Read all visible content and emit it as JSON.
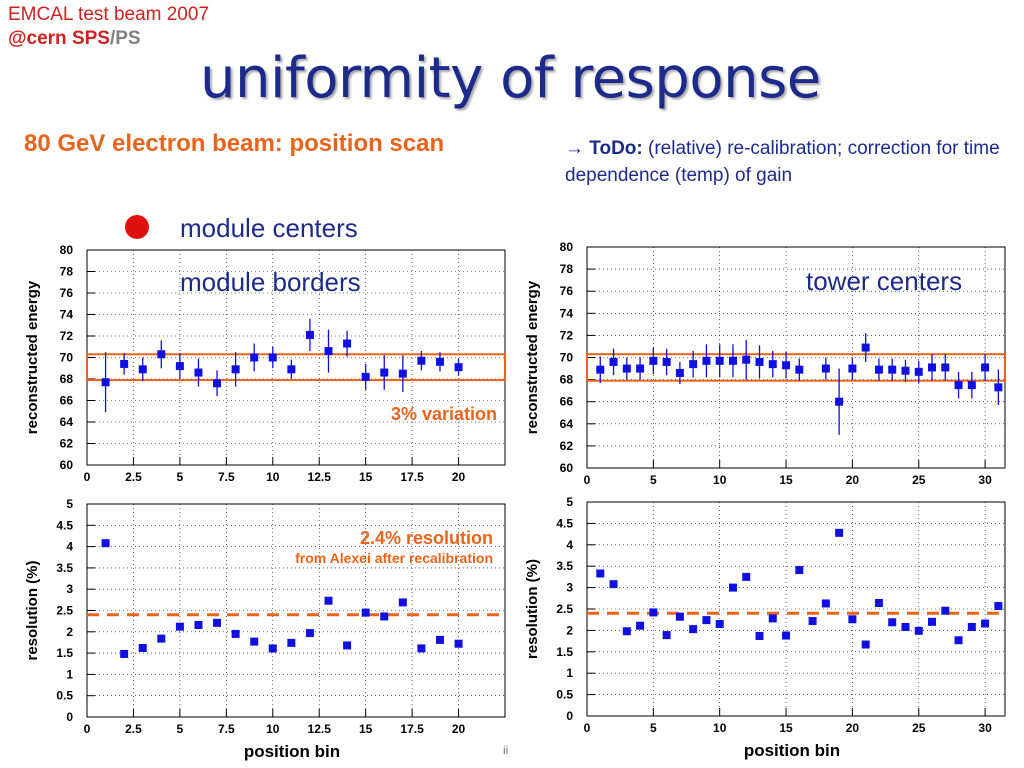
{
  "header": {
    "line1": "EMCAL test beam 2007",
    "line2_red": "@cern SPS",
    "line2_sep": "/",
    "line2_grey": "PS"
  },
  "title": "uniformity of response",
  "subtitle": "80 GeV electron beam: position scan",
  "todo": {
    "arrow": "→",
    "label": "ToDo:",
    "text": " (relative) re-calibration; correction for time dependence (temp) of gain"
  },
  "legend": {
    "module_centers": "module centers",
    "module_borders": "module borders",
    "tower_centers": "tower centers"
  },
  "footer_mark": "ii",
  "colors": {
    "marker": "#1010e0",
    "orange": "#e8641c",
    "red_dot": "#d01010",
    "title": "#1c2a8c"
  },
  "chart_data": [
    {
      "id": "energy_module",
      "type": "scatter",
      "ylabel": "reconstructed energy",
      "xlim": [
        0,
        22.5
      ],
      "ylim": [
        60,
        80
      ],
      "xticks": [
        "0",
        "2.5",
        "5",
        "7.5",
        "10",
        "12.5",
        "15",
        "17.5",
        "20"
      ],
      "xtick_values": [
        0,
        2.5,
        5,
        7.5,
        10,
        12.5,
        15,
        17.5,
        20
      ],
      "yticks": [
        60,
        62,
        64,
        66,
        68,
        70,
        72,
        74,
        76,
        78,
        80
      ],
      "x": [
        1,
        2,
        3,
        4,
        5,
        6,
        7,
        8,
        9,
        10,
        11,
        12,
        13,
        14,
        15,
        16,
        17,
        18,
        19,
        20
      ],
      "y": [
        67.7,
        69.4,
        68.9,
        70.3,
        69.2,
        68.6,
        67.6,
        68.9,
        70.0,
        70.0,
        68.9,
        72.1,
        70.6,
        71.3,
        68.2,
        68.6,
        68.5,
        69.7,
        69.6,
        69.1
      ],
      "err": [
        2.8,
        1.0,
        1.1,
        1.3,
        1.2,
        1.3,
        1.2,
        1.6,
        1.3,
        1.0,
        0.9,
        1.5,
        2.0,
        1.2,
        1.2,
        1.6,
        1.7,
        0.9,
        0.9,
        0.8
      ],
      "band": [
        67.9,
        70.3
      ],
      "band_label": "3% variation",
      "grid": true
    },
    {
      "id": "energy_tower",
      "type": "scatter",
      "ylabel": "reconstructed energy",
      "xlim": [
        0,
        31.5
      ],
      "ylim": [
        60,
        80
      ],
      "xticks": [
        "0",
        "5",
        "10",
        "15",
        "20",
        "25",
        "30"
      ],
      "xtick_values": [
        0,
        5,
        10,
        15,
        20,
        25,
        30
      ],
      "yticks": [
        60,
        62,
        64,
        66,
        68,
        70,
        72,
        74,
        76,
        78,
        80
      ],
      "x": [
        1,
        2,
        3,
        4,
        5,
        6,
        7,
        8,
        9,
        10,
        11,
        12,
        13,
        14,
        15,
        16,
        18,
        19,
        20,
        21,
        22,
        23,
        24,
        25,
        26,
        27,
        28,
        29,
        30,
        31
      ],
      "y": [
        68.9,
        69.6,
        69.0,
        69.0,
        69.7,
        69.6,
        68.6,
        69.4,
        69.7,
        69.7,
        69.7,
        69.8,
        69.6,
        69.4,
        69.3,
        68.9,
        69.0,
        66.0,
        69.0,
        70.9,
        68.9,
        68.9,
        68.8,
        68.7,
        69.1,
        69.1,
        67.5,
        67.5,
        69.1,
        67.3
      ],
      "err": [
        1.2,
        1.2,
        1.0,
        1.0,
        1.2,
        1.2,
        1.0,
        1.2,
        1.5,
        1.5,
        1.5,
        1.8,
        1.5,
        1.2,
        1.2,
        1.0,
        1.0,
        3.0,
        1.0,
        1.3,
        1.0,
        1.0,
        1.0,
        1.0,
        1.2,
        1.2,
        1.2,
        1.2,
        1.2,
        1.6
      ],
      "band": [
        67.9,
        70.3
      ],
      "grid": true
    },
    {
      "id": "resolution_module",
      "type": "scatter",
      "xlabel": "position bin",
      "ylabel": "resolution (%)",
      "xlim": [
        0,
        22.5
      ],
      "ylim": [
        0,
        5
      ],
      "xticks": [
        "0",
        "2.5",
        "5",
        "7.5",
        "10",
        "12.5",
        "15",
        "17.5",
        "20"
      ],
      "xtick_values": [
        0,
        2.5,
        5,
        7.5,
        10,
        12.5,
        15,
        17.5,
        20
      ],
      "yticks": [
        "0",
        "0.5",
        "1",
        "1.5",
        "2",
        "2.5",
        "3",
        "3.5",
        "4",
        "4.5",
        "5"
      ],
      "ytick_values": [
        0,
        0.5,
        1,
        1.5,
        2,
        2.5,
        3,
        3.5,
        4,
        4.5,
        5
      ],
      "x": [
        1,
        2,
        3,
        4,
        5,
        6,
        7,
        8,
        9,
        10,
        11,
        12,
        13,
        14,
        15,
        16,
        17,
        18,
        19,
        20
      ],
      "y": [
        4.08,
        1.48,
        1.62,
        1.84,
        2.12,
        2.16,
        2.21,
        1.95,
        1.77,
        1.61,
        1.74,
        1.97,
        2.73,
        1.68,
        2.45,
        2.36,
        2.69,
        1.61,
        1.81,
        1.72
      ],
      "ref_line": 2.4,
      "ref_label": "2.4% resolution",
      "ref_sublabel": "from Alexei after recalibration",
      "grid": true
    },
    {
      "id": "resolution_tower",
      "type": "scatter",
      "xlabel": "position bin",
      "ylabel": "resolution (%)",
      "xlim": [
        0,
        31.5
      ],
      "ylim": [
        0,
        5
      ],
      "xticks": [
        "0",
        "5",
        "10",
        "15",
        "20",
        "25",
        "30"
      ],
      "xtick_values": [
        0,
        5,
        10,
        15,
        20,
        25,
        30
      ],
      "yticks": [
        "0",
        "0.5",
        "1",
        "1.5",
        "2",
        "2.5",
        "3",
        "3.5",
        "4",
        "4.5",
        "5"
      ],
      "ytick_values": [
        0,
        0.5,
        1,
        1.5,
        2,
        2.5,
        3,
        3.5,
        4,
        4.5,
        5
      ],
      "x": [
        1,
        2,
        3,
        4,
        5,
        6,
        7,
        8,
        9,
        10,
        11,
        12,
        13,
        14,
        15,
        16,
        17,
        18,
        19,
        20,
        21,
        22,
        23,
        24,
        25,
        26,
        27,
        28,
        29,
        30,
        31
      ],
      "y": [
        3.33,
        3.08,
        1.98,
        2.11,
        2.42,
        1.89,
        2.32,
        2.03,
        2.24,
        2.15,
        3.0,
        3.25,
        1.87,
        2.28,
        1.88,
        3.41,
        2.22,
        2.63,
        4.28,
        2.26,
        1.67,
        2.64,
        2.19,
        2.08,
        1.99,
        2.2,
        2.46,
        1.77,
        2.08,
        2.16,
        2.57
      ],
      "ref_line": 2.4,
      "grid": true
    }
  ]
}
